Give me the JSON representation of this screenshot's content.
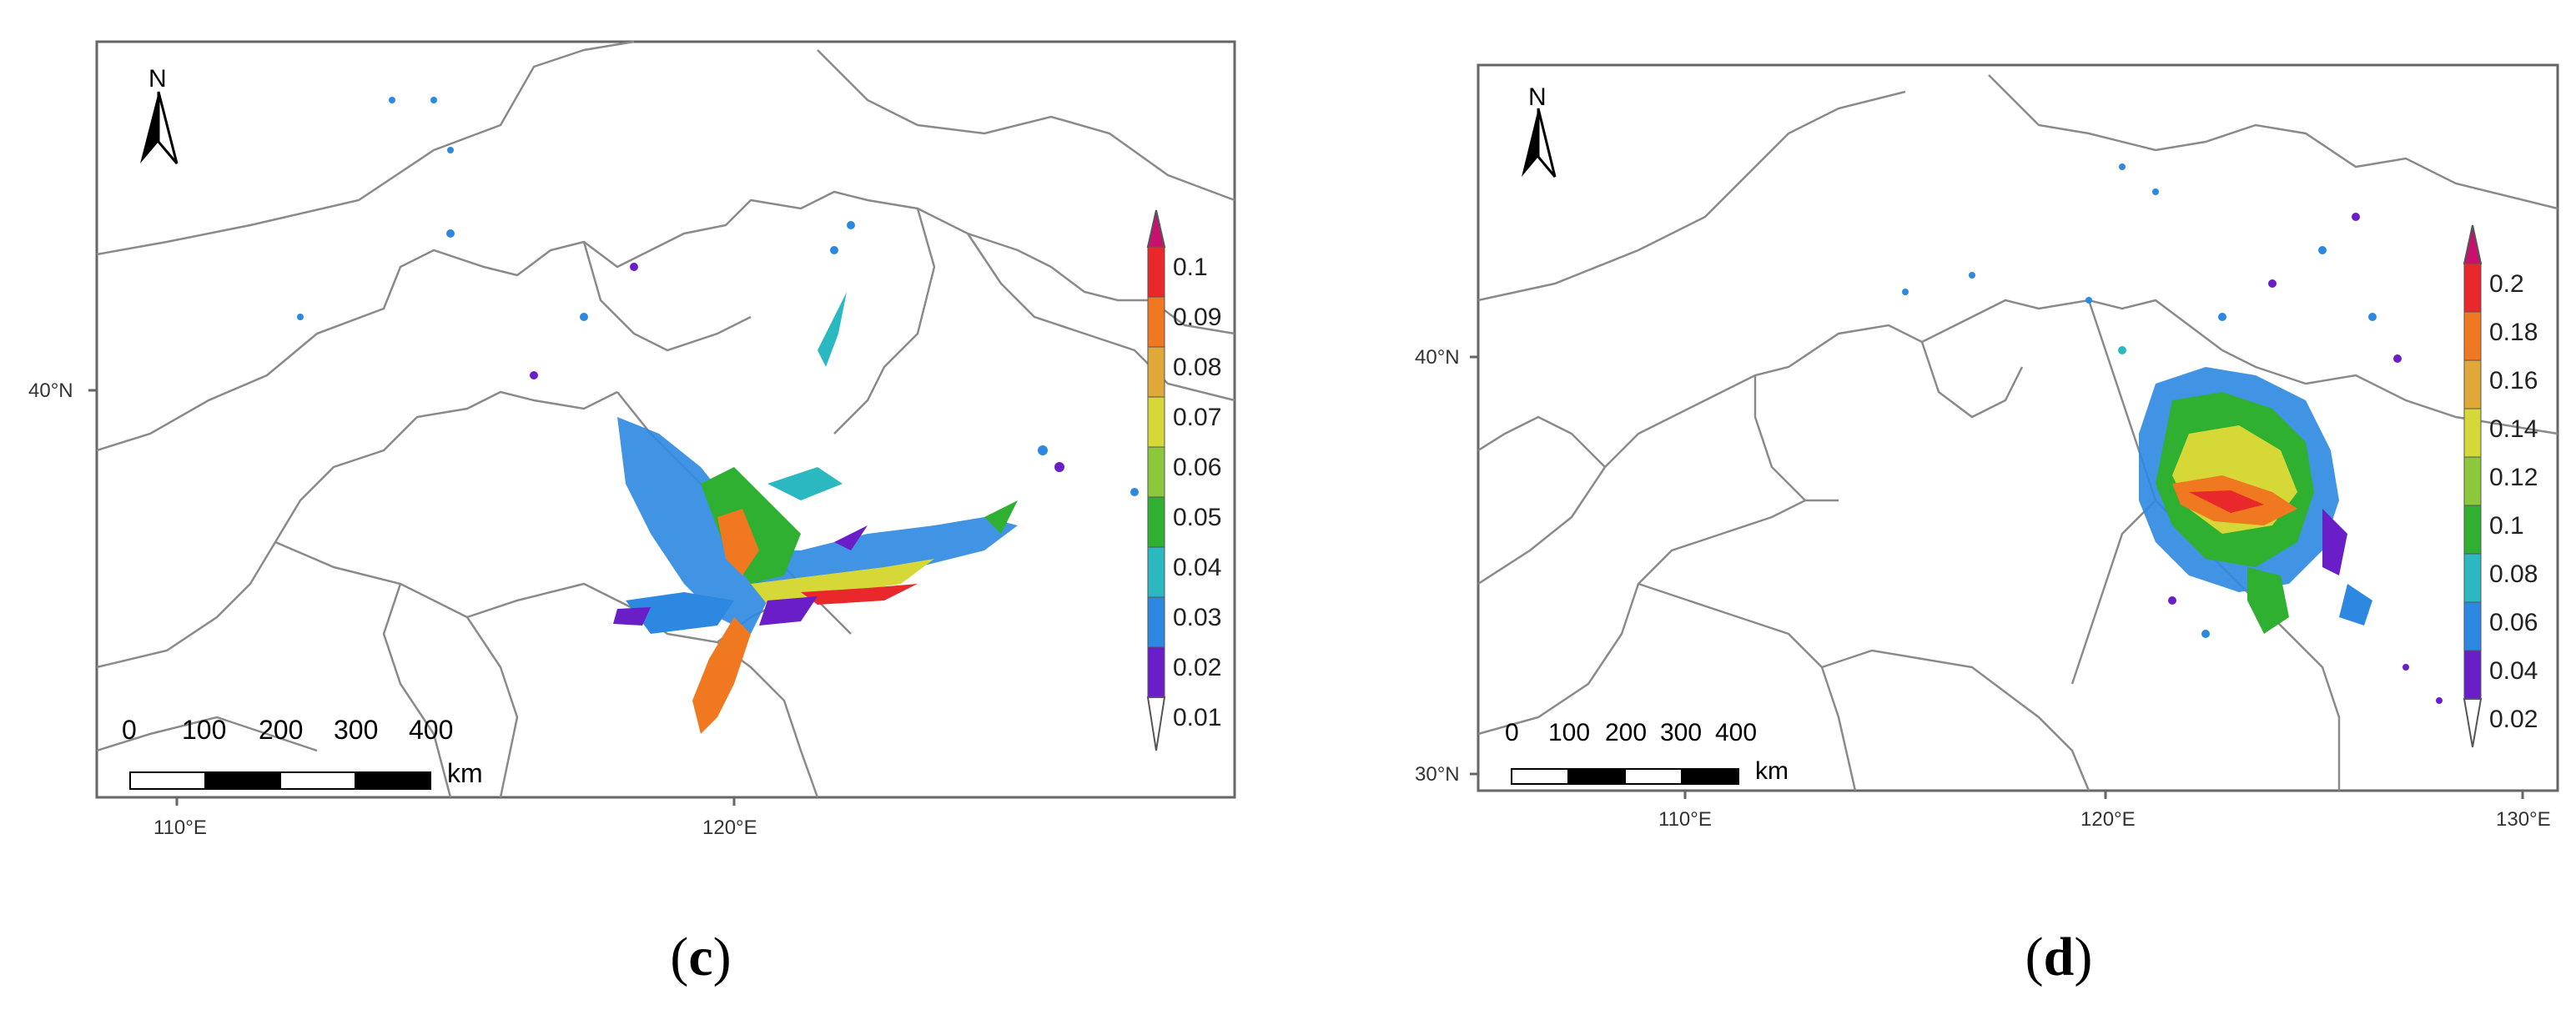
{
  "panels": [
    {
      "id": "c",
      "caption": "c",
      "north_label": "N",
      "lat_ticks": [
        "40°N"
      ],
      "lon_ticks": [
        "110°E",
        "120°E"
      ],
      "scale_bar": {
        "numbers": [
          "0",
          "100",
          "200",
          "300",
          "400"
        ],
        "unit": "km"
      },
      "legend": {
        "levels": [
          "0.1",
          "0.09",
          "0.08",
          "0.07",
          "0.06",
          "0.05",
          "0.04",
          "0.03",
          "0.02",
          "0.01"
        ]
      }
    },
    {
      "id": "d",
      "caption": "d",
      "north_label": "N",
      "lat_ticks": [
        "40°N",
        "30°N"
      ],
      "lon_ticks": [
        "110°E",
        "120°E",
        "130°E"
      ],
      "scale_bar": {
        "numbers": [
          "0",
          "100",
          "200",
          "300",
          "400"
        ],
        "unit": "km"
      },
      "legend": {
        "levels": [
          "0.2",
          "0.18",
          "0.16",
          "0.14",
          "0.12",
          "0.1",
          "0.08",
          "0.06",
          "0.04",
          "0.02"
        ]
      }
    }
  ],
  "colors": {
    "legend_top_to_bottom": [
      "#c8106e",
      "#e8282a",
      "#f07820",
      "#e0a838",
      "#d6d838",
      "#8cc83c",
      "#30b030",
      "#2cb8c0",
      "#2c88e0",
      "#6a1ec8",
      "#ffffff"
    ],
    "boundary": "#8a8a8a",
    "frame": "#666666"
  }
}
